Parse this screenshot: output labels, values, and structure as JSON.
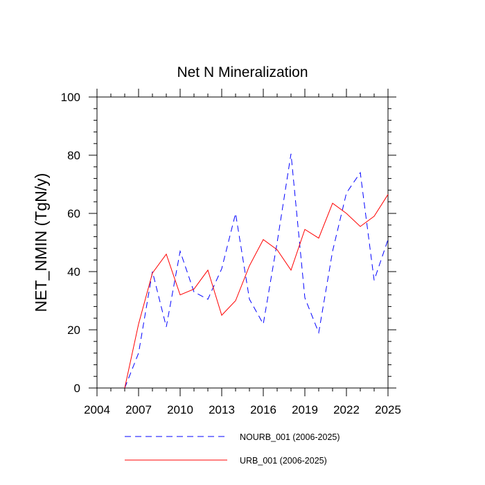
{
  "chart_data": {
    "type": "line",
    "title": "Net N Mineralization",
    "xlabel": "",
    "ylabel": "NET_NMIN  (TgN/y)",
    "xlim": [
      2004,
      2025
    ],
    "ylim": [
      0,
      100
    ],
    "x_ticks": [
      2004,
      2007,
      2010,
      2013,
      2016,
      2019,
      2022,
      2025
    ],
    "y_ticks": [
      0,
      20,
      40,
      60,
      80,
      100
    ],
    "x": [
      2006,
      2007,
      2008,
      2009,
      2010,
      2011,
      2012,
      2013,
      2014,
      2015,
      2016,
      2017,
      2018,
      2019,
      2020,
      2021,
      2022,
      2023,
      2024,
      2025
    ],
    "series": [
      {
        "name": "NOURB_001 (2006-2025)",
        "color": "#0000ff",
        "dash": "dashed",
        "values": [
          0,
          12,
          40,
          21,
          47,
          33,
          30.5,
          41,
          60,
          30.5,
          22,
          50,
          80.5,
          31,
          19,
          47,
          67,
          74,
          37,
          51
        ]
      },
      {
        "name": "URB_001 (2006-2025)",
        "color": "#ff0000",
        "dash": "solid",
        "values": [
          0,
          22,
          39.5,
          46,
          32,
          34,
          40.5,
          25,
          30,
          42,
          51,
          47.5,
          40.5,
          54.5,
          51.5,
          63.5,
          60,
          55.5,
          59,
          66.5
        ]
      }
    ]
  }
}
